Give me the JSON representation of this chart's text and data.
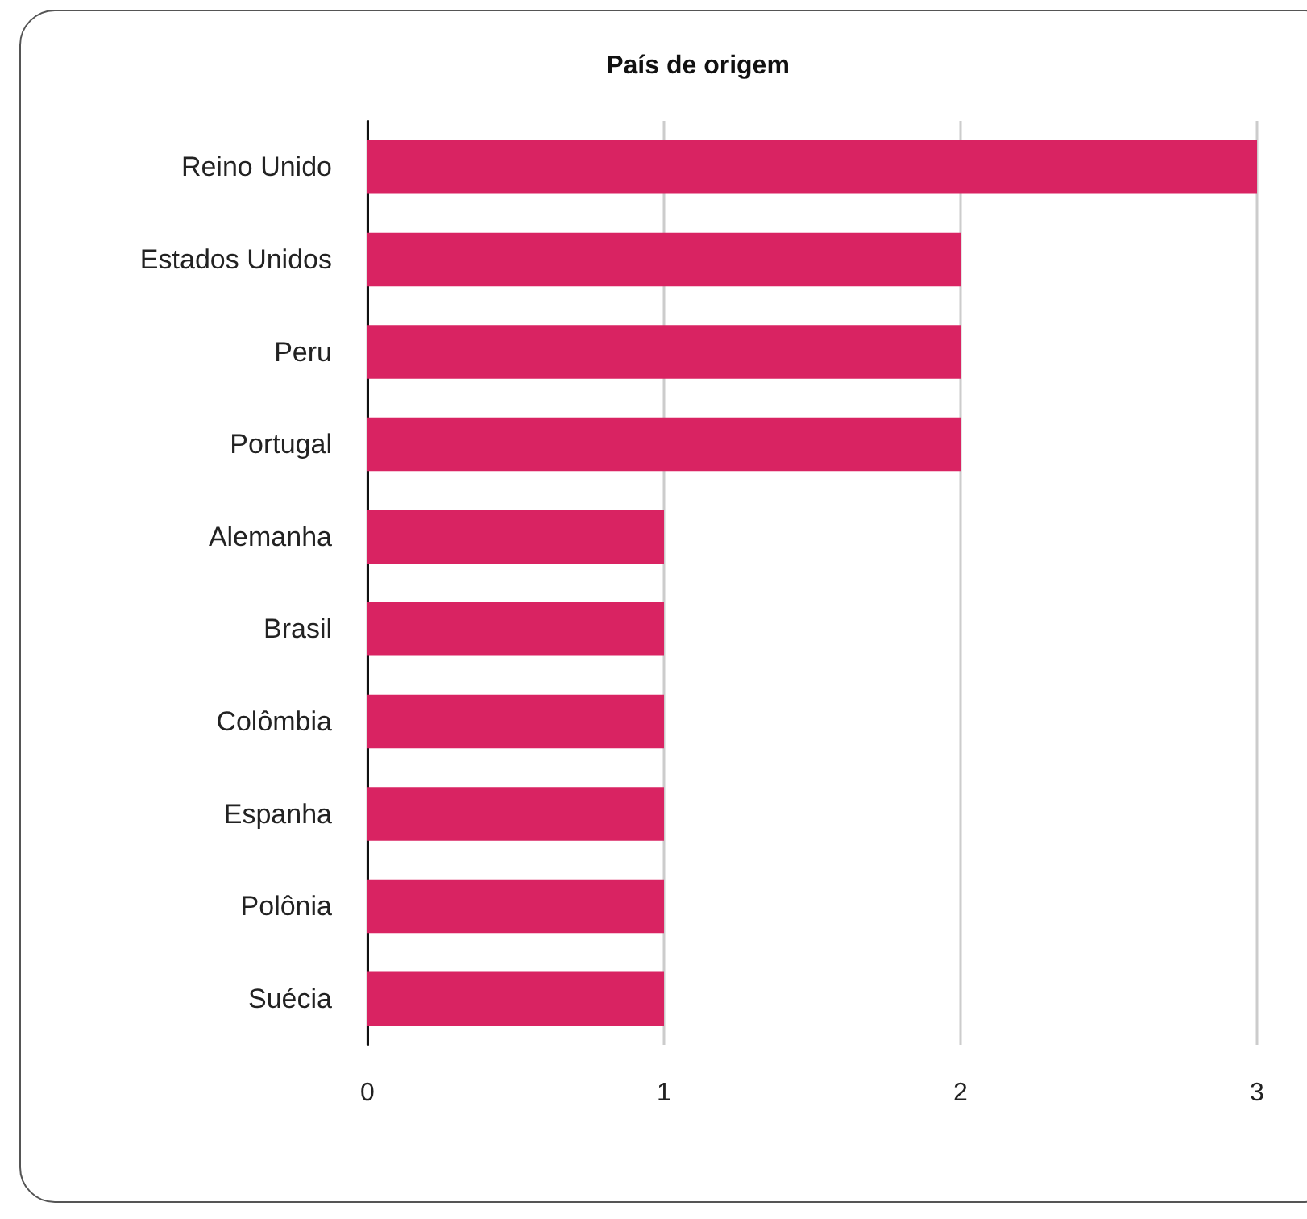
{
  "chart_data": {
    "type": "bar",
    "orientation": "horizontal",
    "title": "País de origem",
    "categories": [
      "Reino Unido",
      "Estados Unidos",
      "Peru",
      "Portugal",
      "Alemanha",
      "Brasil",
      "Colômbia",
      "Espanha",
      "Polônia",
      "Suécia"
    ],
    "values": [
      3,
      2,
      2,
      2,
      1,
      1,
      1,
      1,
      1,
      1
    ],
    "color": "#d92362",
    "xlim": [
      0,
      3
    ],
    "xticks": [
      0,
      1,
      2,
      3
    ],
    "grid": "x"
  }
}
